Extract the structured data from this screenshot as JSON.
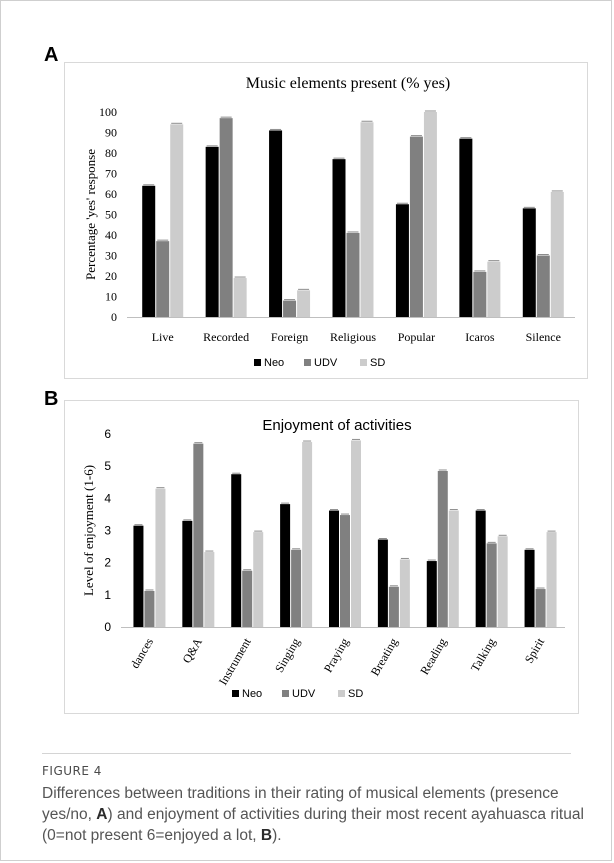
{
  "panel_a_letter": "A",
  "panel_b_letter": "B",
  "figure_label": "FIGURE 4",
  "caption": {
    "t1": "Differences between traditions in their rating of musical elements (presence yes/no, ",
    "b1": "A",
    "t2": ") and enjoyment of activities during their most recent ayahuasca ritual (0=not present 6=enjoyed a lot, ",
    "b2": "B",
    "t3": ")."
  },
  "colors": {
    "Neo": "#000000",
    "UDV": "#808080",
    "SD": "#cccccc"
  },
  "chart_data": [
    {
      "type": "bar",
      "title": "Music elements present (% yes)",
      "xlabel": "",
      "ylabel": "Percentage 'yes' response",
      "ylim": [
        0,
        100
      ],
      "yticks": [
        0,
        10,
        20,
        30,
        40,
        50,
        60,
        70,
        80,
        90,
        100
      ],
      "grid": false,
      "legend": "bottom",
      "categories": [
        "Live",
        "Recorded",
        "Foreign",
        "Religious",
        "Popular",
        "Icaros",
        "Silence"
      ],
      "series": [
        {
          "name": "Neo",
          "values": [
            64,
            83,
            91,
            77,
            55,
            87,
            53
          ]
        },
        {
          "name": "UDV",
          "values": [
            37,
            97,
            8,
            41,
            88,
            22,
            30
          ]
        },
        {
          "name": "SD",
          "values": [
            94,
            19,
            13,
            95,
            100,
            27,
            61
          ]
        }
      ]
    },
    {
      "type": "bar",
      "title": "Enjoyment of activities",
      "xlabel": "",
      "ylabel": "Level of enjoyment (1-6)",
      "ylim": [
        0,
        6
      ],
      "yticks": [
        0,
        1,
        2,
        3,
        4,
        5,
        6
      ],
      "grid": false,
      "legend": "bottom",
      "categories": [
        "dances",
        "Q&A",
        "Instrument",
        "Singing",
        "Praying",
        "Breating",
        "Reading",
        "Talking",
        "Spirit"
      ],
      "series": [
        {
          "name": "Neo",
          "values": [
            3.15,
            3.3,
            4.75,
            3.82,
            3.62,
            2.72,
            2.05,
            3.62,
            2.4
          ]
        },
        {
          "name": "UDV",
          "values": [
            1.12,
            5.7,
            1.75,
            2.4,
            3.48,
            1.25,
            4.85,
            2.6,
            1.18
          ]
        },
        {
          "name": "SD",
          "values": [
            4.3,
            2.33,
            2.95,
            5.75,
            5.8,
            2.1,
            3.62,
            2.82,
            2.95
          ]
        }
      ]
    }
  ]
}
